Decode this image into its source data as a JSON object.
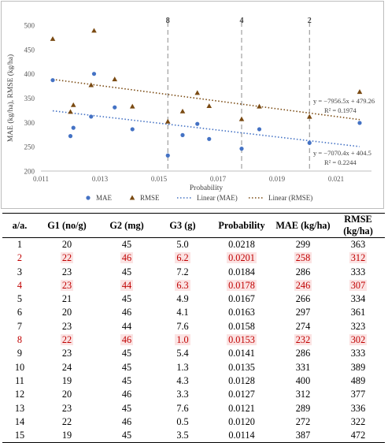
{
  "chart_data": {
    "type": "scatter",
    "xlabel": "Probability",
    "ylabel": "MAE (kg/ha), RMSE (kg/ha)",
    "xlim": [
      0.011,
      0.0222
    ],
    "ylim": [
      200,
      500
    ],
    "x_ticks": [
      0.011,
      0.013,
      0.015,
      0.017,
      0.019,
      0.021
    ],
    "x_tick_labels": [
      "0.011",
      "0.013",
      "0.015",
      "0.017",
      "0.019",
      "0.021"
    ],
    "y_ticks": [
      200,
      250,
      300,
      350,
      400,
      450,
      500
    ],
    "y_tick_labels": [
      "200",
      "250",
      "300",
      "350",
      "400",
      "450",
      "500"
    ],
    "grid": false,
    "vlines": [
      {
        "x": 0.0153,
        "label": "8"
      },
      {
        "x": 0.0178,
        "label": "4"
      },
      {
        "x": 0.0201,
        "label": "2"
      }
    ],
    "series": [
      {
        "name": "MAE",
        "color": "#4472c4",
        "marker": "circle",
        "x": [
          0.0218,
          0.0201,
          0.0184,
          0.0178,
          0.0167,
          0.0163,
          0.0158,
          0.0153,
          0.0141,
          0.0135,
          0.0128,
          0.0127,
          0.0121,
          0.012,
          0.0114
        ],
        "y": [
          299,
          258,
          286,
          246,
          266,
          297,
          274,
          232,
          286,
          331,
          400,
          312,
          289,
          272,
          387
        ]
      },
      {
        "name": "RMSE",
        "color": "#7a4a12",
        "marker": "triangle",
        "x": [
          0.0218,
          0.0201,
          0.0184,
          0.0178,
          0.0167,
          0.0163,
          0.0158,
          0.0153,
          0.0141,
          0.0135,
          0.0128,
          0.0127,
          0.0121,
          0.012,
          0.0114
        ],
        "y": [
          363,
          312,
          333,
          307,
          334,
          361,
          323,
          302,
          333,
          389,
          489,
          377,
          336,
          322,
          472
        ]
      }
    ],
    "trendlines": [
      {
        "name": "Linear (MAE)",
        "series": "MAE",
        "slope": -7070.4,
        "intercept": 404.5,
        "equation": "y = −7070.4x + 404.5",
        "r2": "R² = 0.2244",
        "color": "#4472c4"
      },
      {
        "name": "Linear (RMSE)",
        "series": "RMSE",
        "slope": -7956.5,
        "intercept": 479.26,
        "equation": "y = −7956.5x + 479.26",
        "r2": "R² = 0.1974",
        "color": "#7a4a12"
      }
    ],
    "legend_placement": "bottom"
  },
  "table": {
    "headers": [
      "a/a.",
      "G1 (no/g)",
      "G2 (mg)",
      "G3 (g)",
      "Probability",
      "MAE (kg/ha)",
      "RMSE (kg/ha)"
    ],
    "rows": [
      [
        "1",
        "20",
        "45",
        "5.0",
        "0.0218",
        "299",
        "363"
      ],
      [
        "2",
        "22",
        "46",
        "6.2",
        "0.0201",
        "258",
        "312"
      ],
      [
        "3",
        "23",
        "45",
        "7.2",
        "0.0184",
        "286",
        "333"
      ],
      [
        "4",
        "23",
        "44",
        "6.3",
        "0.0178",
        "246",
        "307"
      ],
      [
        "5",
        "21",
        "45",
        "4.9",
        "0.0167",
        "266",
        "334"
      ],
      [
        "6",
        "20",
        "46",
        "4.1",
        "0.0163",
        "297",
        "361"
      ],
      [
        "7",
        "23",
        "44",
        "7.6",
        "0.0158",
        "274",
        "323"
      ],
      [
        "8",
        "22",
        "46",
        "1.0",
        "0.0153",
        "232",
        "302"
      ],
      [
        "9",
        "23",
        "45",
        "5.4",
        "0.0141",
        "286",
        "333"
      ],
      [
        "10",
        "24",
        "45",
        "1.3",
        "0.0135",
        "331",
        "389"
      ],
      [
        "11",
        "19",
        "45",
        "4.3",
        "0.0128",
        "400",
        "489"
      ],
      [
        "12",
        "20",
        "46",
        "3.3",
        "0.0127",
        "312",
        "377"
      ],
      [
        "13",
        "23",
        "45",
        "7.6",
        "0.0121",
        "289",
        "336"
      ],
      [
        "14",
        "22",
        "46",
        "0.5",
        "0.0120",
        "272",
        "322"
      ],
      [
        "15",
        "19",
        "45",
        "3.5",
        "0.0114",
        "387",
        "472"
      ]
    ],
    "highlighted_rows": [
      "2",
      "4",
      "8"
    ],
    "highlight_color": "#c00000"
  }
}
